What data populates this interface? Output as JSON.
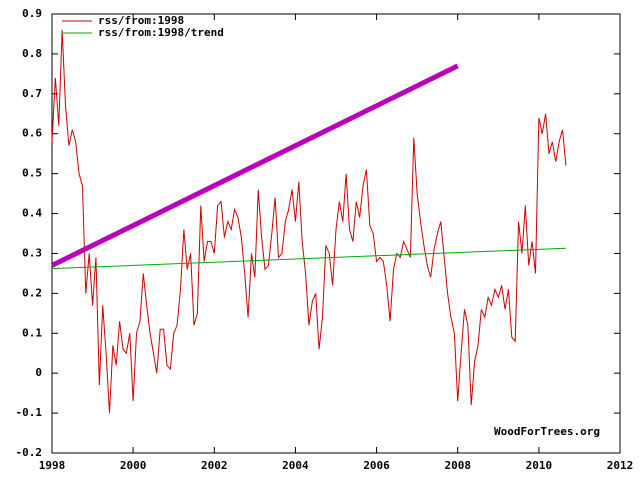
{
  "chart_data": {
    "type": "line",
    "series": [
      {
        "name": "rss/from:1998",
        "color": "#cc0000",
        "width": 1,
        "x": [
          1998,
          1998.083,
          1998.167,
          1998.25,
          1998.333,
          1998.417,
          1998.5,
          1998.583,
          1998.667,
          1998.75,
          1998.833,
          1998.917,
          1999,
          1999.083,
          1999.167,
          1999.25,
          1999.333,
          1999.417,
          1999.5,
          1999.583,
          1999.667,
          1999.75,
          1999.833,
          1999.917,
          2000,
          2000.083,
          2000.167,
          2000.25,
          2000.333,
          2000.417,
          2000.5,
          2000.583,
          2000.667,
          2000.75,
          2000.833,
          2000.917,
          2001,
          2001.083,
          2001.167,
          2001.25,
          2001.333,
          2001.417,
          2001.5,
          2001.583,
          2001.667,
          2001.75,
          2001.833,
          2001.917,
          2002,
          2002.083,
          2002.167,
          2002.25,
          2002.333,
          2002.417,
          2002.5,
          2002.583,
          2002.667,
          2002.75,
          2002.833,
          2002.917,
          2003,
          2003.083,
          2003.167,
          2003.25,
          2003.333,
          2003.417,
          2003.5,
          2003.583,
          2003.667,
          2003.75,
          2003.833,
          2003.917,
          2004,
          2004.083,
          2004.167,
          2004.25,
          2004.333,
          2004.417,
          2004.5,
          2004.583,
          2004.667,
          2004.75,
          2004.833,
          2004.917,
          2005,
          2005.083,
          2005.167,
          2005.25,
          2005.333,
          2005.417,
          2005.5,
          2005.583,
          2005.667,
          2005.75,
          2005.833,
          2005.917,
          2006,
          2006.083,
          2006.167,
          2006.25,
          2006.333,
          2006.417,
          2006.5,
          2006.583,
          2006.667,
          2006.75,
          2006.833,
          2006.917,
          2007,
          2007.083,
          2007.167,
          2007.25,
          2007.333,
          2007.417,
          2007.5,
          2007.583,
          2007.667,
          2007.75,
          2007.833,
          2007.917,
          2008,
          2008.083,
          2008.167,
          2008.25,
          2008.333,
          2008.417,
          2008.5,
          2008.583,
          2008.667,
          2008.75,
          2008.833,
          2008.917,
          2009,
          2009.083,
          2009.167,
          2009.25,
          2009.333,
          2009.417,
          2009.5,
          2009.583,
          2009.667,
          2009.75,
          2009.833,
          2009.917,
          2010,
          2010.083,
          2010.167,
          2010.25,
          2010.333,
          2010.417,
          2010.5,
          2010.583,
          2010.667
        ],
        "values": [
          0.58,
          0.74,
          0.62,
          0.86,
          0.67,
          0.57,
          0.61,
          0.58,
          0.5,
          0.47,
          0.2,
          0.3,
          0.17,
          0.29,
          -0.03,
          0.17,
          0.05,
          -0.1,
          0.07,
          0.02,
          0.13,
          0.06,
          0.05,
          0.1,
          -0.07,
          0.1,
          0.13,
          0.25,
          0.17,
          0.1,
          0.05,
          0.0,
          0.11,
          0.11,
          0.02,
          0.01,
          0.1,
          0.12,
          0.21,
          0.36,
          0.26,
          0.3,
          0.12,
          0.15,
          0.42,
          0.28,
          0.33,
          0.33,
          0.3,
          0.42,
          0.43,
          0.34,
          0.38,
          0.36,
          0.41,
          0.39,
          0.34,
          0.25,
          0.14,
          0.3,
          0.24,
          0.46,
          0.34,
          0.26,
          0.27,
          0.35,
          0.44,
          0.29,
          0.3,
          0.38,
          0.41,
          0.46,
          0.38,
          0.48,
          0.33,
          0.25,
          0.12,
          0.18,
          0.2,
          0.06,
          0.14,
          0.32,
          0.3,
          0.22,
          0.36,
          0.43,
          0.38,
          0.5,
          0.36,
          0.33,
          0.43,
          0.39,
          0.47,
          0.51,
          0.37,
          0.35,
          0.28,
          0.29,
          0.28,
          0.22,
          0.13,
          0.26,
          0.3,
          0.29,
          0.33,
          0.31,
          0.29,
          0.59,
          0.45,
          0.38,
          0.32,
          0.27,
          0.24,
          0.31,
          0.35,
          0.38,
          0.29,
          0.2,
          0.14,
          0.1,
          -0.07,
          0.05,
          0.16,
          0.12,
          -0.08,
          0.03,
          0.07,
          0.16,
          0.14,
          0.19,
          0.17,
          0.21,
          0.19,
          0.22,
          0.16,
          0.21,
          0.09,
          0.08,
          0.38,
          0.3,
          0.42,
          0.27,
          0.33,
          0.25,
          0.64,
          0.6,
          0.65,
          0.55,
          0.58,
          0.53,
          0.58,
          0.61,
          0.52
        ]
      },
      {
        "name": "rss/from:1998/trend",
        "color": "#00aa00",
        "width": 1,
        "x": [
          1998,
          2010.667
        ],
        "values": [
          0.262,
          0.313
        ]
      },
      {
        "color": "#bb00bb",
        "width": 5,
        "x": [
          1998,
          2008
        ],
        "values": [
          0.27,
          0.77
        ]
      }
    ],
    "xlim": [
      1998,
      2012
    ],
    "xticks": [
      1998,
      2000,
      2002,
      2004,
      2006,
      2008,
      2010,
      2012
    ],
    "ylim": [
      -0.2,
      0.9
    ],
    "yticks": [
      -0.2,
      -0.1,
      0,
      0.1,
      0.2,
      0.3,
      0.4,
      0.5,
      0.6,
      0.7,
      0.8,
      0.9
    ],
    "legend": "top-left",
    "grid": false,
    "annotations": [
      "WoodForTrees.org"
    ]
  }
}
